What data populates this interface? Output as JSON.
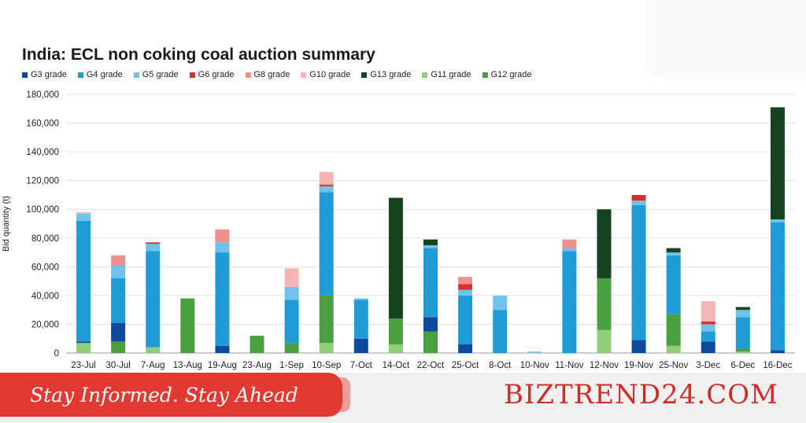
{
  "colors": {
    "G3": "#0d4a9e",
    "G4": "#1f9bd7",
    "G5": "#6fc3ea",
    "G6": "#d8302e",
    "G8": "#ef8f8c",
    "G10": "#f3b6b4",
    "G13": "#13431f",
    "G11": "#8fcf79",
    "G12": "#4aa03e",
    "slogan_bg": "#e23a32",
    "brand": "#d22a2a"
  },
  "footer": {
    "slogan": "Stay Informed. Stay Ahead",
    "brand": "BIZTREND24.COM"
  },
  "chart_data": {
    "type": "bar",
    "stacked": true,
    "title": "India: ECL non coking coal auction summary",
    "xlabel": "",
    "ylabel": "Bid quantity (t)",
    "ylim": [
      0,
      180000
    ],
    "yticks": [
      "0",
      "20,000",
      "40,000",
      "60,000",
      "80,000",
      "100,000",
      "120,000",
      "140,000",
      "160,000",
      "180,000"
    ],
    "ytick_values": [
      0,
      20000,
      40000,
      60000,
      80000,
      100000,
      120000,
      140000,
      160000,
      180000
    ],
    "grid": true,
    "legend_position": "top-left",
    "categories": [
      "23-Jul",
      "30-Jul",
      "7-Aug",
      "13-Aug",
      "19-Aug",
      "23-Aug",
      "1-Sep",
      "10-Sep",
      "7-Oct",
      "14-Oct",
      "22-Oct",
      "25-Oct",
      "8-Oct",
      "10-Nov",
      "11-Nov",
      "12-Nov",
      "19-Nov",
      "25-Nov",
      "3-Dec",
      "6-Dec",
      "16-Dec"
    ],
    "series": [
      {
        "name": "G3 grade",
        "key": "G3",
        "values": [
          1000,
          13000,
          0,
          0,
          5000,
          0,
          0,
          0,
          10000,
          0,
          10000,
          6000,
          0,
          0,
          0,
          0,
          9000,
          0,
          8000,
          0,
          2000
        ]
      },
      {
        "name": "G4 grade",
        "key": "G4",
        "values": [
          84000,
          31000,
          67000,
          0,
          65000,
          0,
          30000,
          72000,
          27000,
          0,
          48000,
          34000,
          30000,
          0,
          71000,
          0,
          94000,
          41000,
          7000,
          22000,
          89000
        ]
      },
      {
        "name": "G5 grade",
        "key": "G5",
        "values": [
          5000,
          9000,
          5000,
          0,
          7000,
          0,
          9000,
          4000,
          1000,
          0,
          2000,
          4000,
          10000,
          1000,
          2000,
          0,
          3000,
          2000,
          5000,
          5000,
          2000
        ]
      },
      {
        "name": "G6 grade",
        "key": "G6",
        "values": [
          0,
          0,
          1000,
          0,
          0,
          0,
          0,
          1000,
          0,
          0,
          0,
          4000,
          0,
          0,
          0,
          0,
          4000,
          0,
          2000,
          0,
          0
        ]
      },
      {
        "name": "G8 grade",
        "key": "G8",
        "values": [
          0,
          7000,
          0,
          0,
          9000,
          0,
          0,
          1000,
          0,
          0,
          0,
          5000,
          0,
          0,
          6000,
          0,
          0,
          0,
          0,
          0,
          0
        ]
      },
      {
        "name": "G10 grade",
        "key": "G10",
        "values": [
          1000,
          0,
          0,
          0,
          0,
          0,
          13000,
          8000,
          0,
          0,
          0,
          0,
          0,
          0,
          0,
          0,
          0,
          0,
          14000,
          0,
          0
        ]
      },
      {
        "name": "G13 grade",
        "key": "G13",
        "values": [
          0,
          0,
          0,
          0,
          0,
          0,
          0,
          0,
          0,
          84000,
          4000,
          0,
          0,
          0,
          0,
          48000,
          0,
          3000,
          0,
          2000,
          78000
        ]
      },
      {
        "name": "G11 grade",
        "key": "G11",
        "values": [
          7000,
          0,
          4000,
          0,
          0,
          0,
          0,
          7000,
          0,
          6000,
          0,
          0,
          0,
          0,
          0,
          16000,
          0,
          5000,
          0,
          1000,
          0
        ]
      },
      {
        "name": "G12 grade",
        "key": "G12",
        "values": [
          0,
          8000,
          0,
          38000,
          0,
          12000,
          7000,
          33000,
          0,
          18000,
          15000,
          0,
          0,
          0,
          0,
          36000,
          0,
          22000,
          0,
          2000,
          0
        ]
      }
    ],
    "stack_order": [
      "G11",
      "G12",
      "G3",
      "G4",
      "G5",
      "G6",
      "G8",
      "G10",
      "G13"
    ]
  }
}
